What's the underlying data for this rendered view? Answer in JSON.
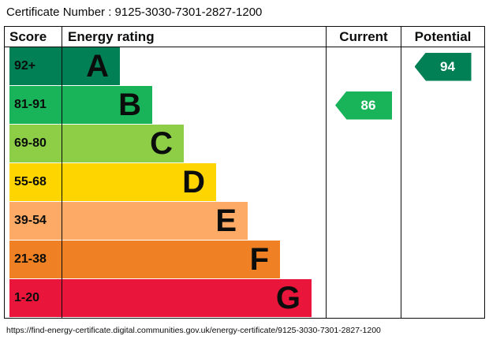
{
  "certificate": {
    "label": "Certificate Number :",
    "number": "9125-3030-7301-2827-1200"
  },
  "header": {
    "score": "Score",
    "energy_rating": "Energy rating",
    "current": "Current",
    "potential": "Potential"
  },
  "bands": [
    {
      "letter": "A",
      "range": "92+",
      "color": "#008054"
    },
    {
      "letter": "B",
      "range": "81-91",
      "color": "#19b459"
    },
    {
      "letter": "C",
      "range": "69-80",
      "color": "#8dce46"
    },
    {
      "letter": "D",
      "range": "55-68",
      "color": "#ffd500"
    },
    {
      "letter": "E",
      "range": "39-54",
      "color": "#fcaa65"
    },
    {
      "letter": "F",
      "range": "21-38",
      "color": "#ef8023"
    },
    {
      "letter": "G",
      "range": "1-20",
      "color": "#e9153b"
    }
  ],
  "ratings": {
    "current": {
      "value": 86,
      "band": "B",
      "color": "#19b459"
    },
    "potential": {
      "value": 94,
      "band": "A",
      "color": "#008054"
    }
  },
  "footer": {
    "url": "https://find-energy-certificate.digital.communities.gov.uk/energy-certificate/9125-3030-7301-2827-1200"
  },
  "chart_data": {
    "type": "bar",
    "title": "Energy rating",
    "categories": [
      "A",
      "B",
      "C",
      "D",
      "E",
      "F",
      "G"
    ],
    "score_ranges": [
      "92+",
      "81-91",
      "69-80",
      "55-68",
      "39-54",
      "21-38",
      "1-20"
    ],
    "band_colors": [
      "#008054",
      "#19b459",
      "#8dce46",
      "#ffd500",
      "#fcaa65",
      "#ef8023",
      "#e9153b"
    ],
    "score_scale": [
      1,
      100
    ],
    "columns": [
      "Score",
      "Energy rating",
      "Current",
      "Potential"
    ],
    "markers": [
      {
        "label": "Current",
        "value": 86,
        "band": "B"
      },
      {
        "label": "Potential",
        "value": 94,
        "band": "A"
      }
    ]
  }
}
